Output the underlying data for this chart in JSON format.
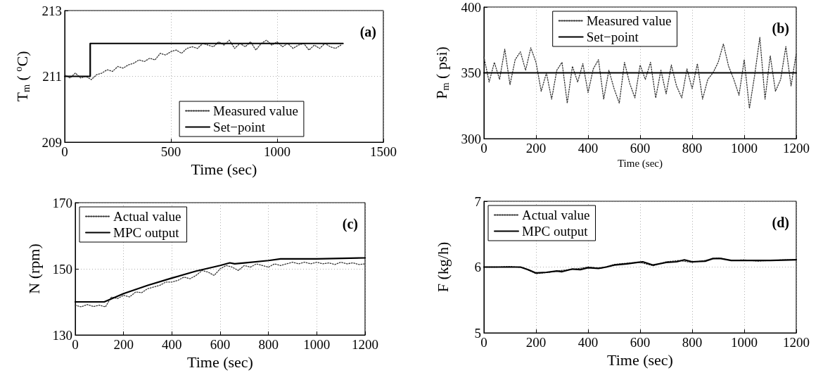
{
  "chart_data": [
    {
      "type": "line",
      "xlabel": "Time (sec)",
      "ylabel": "T$_{m}$ ( $^{o}$C)",
      "xlim": [
        0,
        1500
      ],
      "xticks": [
        0,
        500,
        1000,
        1500
      ],
      "ylim": [
        209,
        213
      ],
      "yticks": [
        209,
        211,
        213
      ],
      "grid": true,
      "legend": "bottom right",
      "annotations": [
        "(a)"
      ],
      "series": [
        {
          "name": "Measured value",
          "color": "#333333",
          "line_style": "dotted",
          "x": [
            0,
            25,
            50,
            75,
            100,
            125,
            150,
            175,
            200,
            225,
            250,
            275,
            300,
            325,
            350,
            375,
            400,
            425,
            450,
            475,
            500,
            525,
            550,
            575,
            600,
            625,
            650,
            675,
            700,
            725,
            750,
            775,
            800,
            825,
            850,
            875,
            900,
            925,
            950,
            975,
            1000,
            1025,
            1050,
            1075,
            1100,
            1125,
            1150,
            1175,
            1200,
            1225,
            1250,
            1275,
            1300
          ],
          "values": [
            211.05,
            210.95,
            211.1,
            210.95,
            211.0,
            210.9,
            211.05,
            211.1,
            211.2,
            211.15,
            211.3,
            211.25,
            211.35,
            211.4,
            211.5,
            211.45,
            211.55,
            211.5,
            211.7,
            211.65,
            211.75,
            211.8,
            211.7,
            211.85,
            211.9,
            211.85,
            212.0,
            211.95,
            211.9,
            212.05,
            211.95,
            212.1,
            211.85,
            212.0,
            211.9,
            212.05,
            211.8,
            212.0,
            212.1,
            211.95,
            212.05,
            211.9,
            212.0,
            211.85,
            211.95,
            212.0,
            211.8,
            211.95,
            211.85,
            212.0,
            211.9,
            211.85,
            211.95
          ]
        },
        {
          "name": "Set−point",
          "color": "#000000",
          "line_style": "solid",
          "x": [
            0,
            120,
            120,
            1310
          ],
          "values": [
            211,
            211,
            212,
            212
          ]
        }
      ]
    },
    {
      "type": "line",
      "xlabel": "Time (sec)",
      "ylabel": "P$_{m}$ ( psi)",
      "xlim": [
        0,
        1200
      ],
      "xticks": [
        0,
        200,
        400,
        600,
        800,
        1000,
        1200
      ],
      "ylim": [
        300,
        400
      ],
      "yticks": [
        300,
        350,
        400
      ],
      "grid": true,
      "legend": "top",
      "annotations": [
        "(b)"
      ],
      "series": [
        {
          "name": "Measured value",
          "color": "#333333",
          "line_style": "dotted",
          "x": [
            0,
            20,
            40,
            60,
            80,
            100,
            120,
            140,
            160,
            180,
            200,
            220,
            240,
            260,
            280,
            300,
            320,
            340,
            360,
            380,
            400,
            420,
            440,
            460,
            480,
            500,
            520,
            540,
            560,
            580,
            600,
            620,
            640,
            660,
            680,
            700,
            720,
            740,
            760,
            780,
            800,
            820,
            840,
            860,
            880,
            900,
            920,
            940,
            960,
            980,
            1000,
            1020,
            1040,
            1060,
            1080,
            1100,
            1120,
            1140,
            1160,
            1180,
            1200
          ],
          "values": [
            362,
            343,
            358,
            345,
            368,
            341,
            360,
            366,
            352,
            369,
            358,
            336,
            350,
            330,
            352,
            358,
            327,
            355,
            343,
            357,
            335,
            353,
            360,
            330,
            352,
            338,
            327,
            358,
            342,
            331,
            356,
            345,
            358,
            331,
            352,
            334,
            356,
            340,
            331,
            353,
            338,
            357,
            330,
            345,
            350,
            358,
            372,
            355,
            345,
            333,
            360,
            323,
            348,
            377,
            330,
            363,
            336,
            345,
            370,
            340,
            365
          ]
        },
        {
          "name": "Set−point",
          "color": "#000000",
          "line_style": "solid",
          "x": [
            0,
            1200
          ],
          "values": [
            350,
            350
          ]
        }
      ]
    },
    {
      "type": "line",
      "xlabel": "Time (sec)",
      "ylabel": "N (rpm)",
      "xlim": [
        0,
        1200
      ],
      "xticks": [
        0,
        200,
        400,
        600,
        800,
        1000,
        1200
      ],
      "ylim": [
        130,
        170
      ],
      "yticks": [
        130,
        150,
        170
      ],
      "grid": true,
      "legend": "top left",
      "annotations": [
        "(c)"
      ],
      "series": [
        {
          "name": "Actual value",
          "color": "#333333",
          "line_style": "dotted",
          "x": [
            0,
            25,
            50,
            75,
            100,
            125,
            150,
            175,
            200,
            225,
            250,
            275,
            300,
            325,
            350,
            375,
            400,
            425,
            450,
            475,
            500,
            525,
            550,
            575,
            600,
            625,
            650,
            675,
            700,
            725,
            750,
            775,
            800,
            825,
            850,
            875,
            900,
            925,
            950,
            975,
            1000,
            1025,
            1050,
            1075,
            1100,
            1125,
            1150,
            1175,
            1200
          ],
          "values": [
            139,
            138.5,
            139.2,
            138.6,
            139,
            138.5,
            141.5,
            141,
            142,
            141.5,
            143,
            142.8,
            144,
            144.5,
            145,
            146,
            146,
            146.5,
            147.5,
            147,
            148,
            149.5,
            149,
            148,
            150,
            151,
            150.5,
            149.5,
            151,
            150.5,
            151.5,
            151,
            150.5,
            151.5,
            151,
            151.5,
            152,
            151.5,
            152,
            151.5,
            152,
            151.5,
            151.8,
            151.3,
            152,
            151.5,
            151.8,
            151.3,
            151.5
          ]
        },
        {
          "name": "MPC output",
          "color": "#000000",
          "line_style": "solid",
          "x": [
            0,
            120,
            200,
            300,
            400,
            500,
            600,
            640,
            660,
            700,
            800,
            850,
            900,
            1000,
            1200
          ],
          "values": [
            140,
            140,
            142.5,
            145,
            147.2,
            149.3,
            151,
            151.8,
            151.5,
            151.8,
            152.5,
            153,
            153,
            153,
            153.3
          ]
        }
      ]
    },
    {
      "type": "line",
      "xlabel": "Time (sec)",
      "ylabel": "F (kg/h)",
      "xlim": [
        0,
        1200
      ],
      "xticks": [
        0,
        200,
        400,
        600,
        800,
        1000,
        1200
      ],
      "ylim": [
        5,
        7
      ],
      "yticks": [
        5,
        6,
        7
      ],
      "grid": true,
      "legend": "top left",
      "annotations": [
        "(d)"
      ],
      "series": [
        {
          "name": "Actual value",
          "color": "#333333",
          "line_style": "dotted",
          "x": [
            0,
            50,
            100,
            150,
            200,
            250,
            300,
            350,
            400,
            450,
            500,
            550,
            600,
            650,
            700,
            750,
            800,
            850,
            900,
            950,
            1000,
            1050,
            1100,
            1150,
            1200
          ],
          "values": [
            6.0,
            6.0,
            6.01,
            5.99,
            5.9,
            5.92,
            5.95,
            5.97,
            6.0,
            5.98,
            6.04,
            6.06,
            6.07,
            6.02,
            6.08,
            6.1,
            6.07,
            6.1,
            6.14,
            6.1,
            6.11,
            6.09,
            6.1,
            6.11,
            6.11
          ]
        },
        {
          "name": "MPC output",
          "color": "#000000",
          "line_style": "solid",
          "x": [
            0,
            140,
            170,
            200,
            240,
            280,
            300,
            340,
            370,
            400,
            440,
            470,
            500,
            550,
            590,
            610,
            650,
            700,
            740,
            770,
            800,
            850,
            880,
            910,
            950,
            1000,
            1100,
            1200
          ],
          "values": [
            6.0,
            6.0,
            5.96,
            5.91,
            5.92,
            5.94,
            5.93,
            5.97,
            5.96,
            5.99,
            5.98,
            6.0,
            6.03,
            6.05,
            6.07,
            6.08,
            6.03,
            6.07,
            6.08,
            6.11,
            6.08,
            6.09,
            6.13,
            6.13,
            6.1,
            6.1,
            6.1,
            6.11
          ]
        }
      ]
    }
  ]
}
